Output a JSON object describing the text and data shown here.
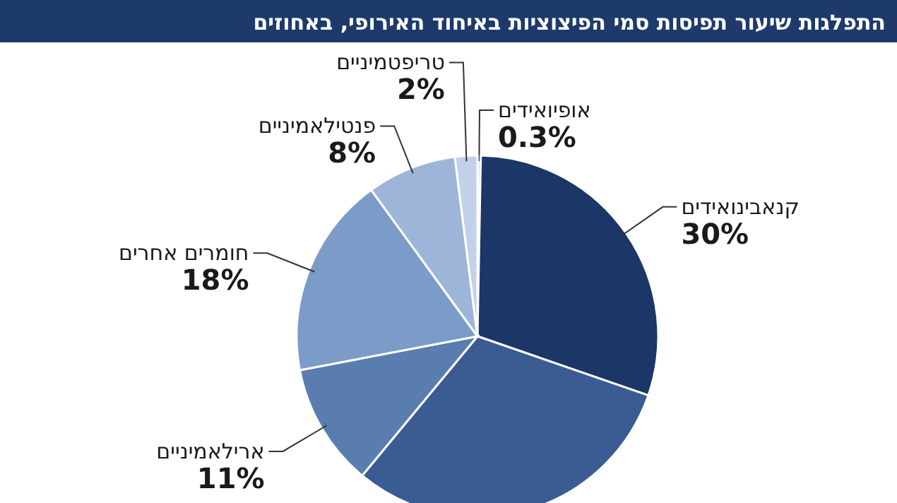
{
  "chart_data": {
    "type": "pie",
    "title": "התפלגות שיעור תפיסות סמי הפיצוציות באיחוד האירופי, באחוזים",
    "categories": [
      "אופיואידים",
      "קנאבינואידים",
      null,
      "ארילאמיניים",
      "חומרים אחרים",
      "פנטילאמיניים",
      "טריפטמיניים"
    ],
    "values": [
      0.3,
      30,
      30.7,
      11,
      18,
      8,
      2
    ],
    "colors": [
      "#d3dced",
      "#1b3667",
      "#3a5c93",
      "#5a7daf",
      "#7b9bc8",
      "#9db5d8",
      "#c3d1e8"
    ],
    "value_labels": [
      "0.3%",
      "30%",
      null,
      "11%",
      "18%",
      "8%",
      "2%"
    ]
  }
}
